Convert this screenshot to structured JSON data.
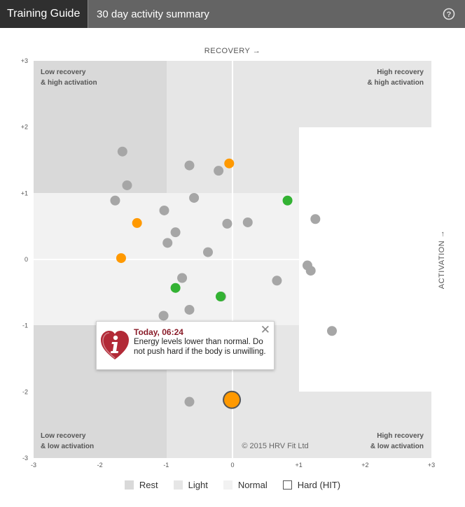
{
  "header": {
    "tab_label": "Training Guide",
    "title": "30 day activity summary",
    "help_icon": "question-circle-icon"
  },
  "chart_data": {
    "type": "scatter",
    "title": "30 day activity summary",
    "xlabel": "RECOVERY →",
    "ylabel": "ACTIVATION →",
    "xlim": [
      -3,
      3
    ],
    "ylim": [
      -3,
      3
    ],
    "x_ticks": [
      "-3",
      "-2",
      "-1",
      "0",
      "+1",
      "+2",
      "+3"
    ],
    "y_ticks": [
      "+3",
      "+2",
      "+1",
      "0",
      "-1",
      "-2",
      "-3"
    ],
    "quadrant_labels": {
      "top_left": [
        "Low recovery",
        "& high activation"
      ],
      "top_right": [
        "High recovery",
        "& high activation"
      ],
      "bottom_left": [
        "Low recovery",
        "& low activation"
      ],
      "bottom_right": [
        "High recovery",
        "& low activation"
      ]
    },
    "copyright": "© 2015 HRV Fit Ltd",
    "zones": {
      "rest": "#d9d9d9",
      "light": "#e6e6e6",
      "normal": "#f2f2f2",
      "hard": "#ffffff"
    },
    "series": [
      {
        "name": "gray",
        "color": "#a6a6a6",
        "points": [
          [
            -1.66,
            1.63
          ],
          [
            -1.59,
            1.12
          ],
          [
            -1.77,
            0.89
          ],
          [
            -1.03,
            0.74
          ],
          [
            -0.65,
            1.42
          ],
          [
            -0.58,
            0.93
          ],
          [
            -0.21,
            1.34
          ],
          [
            -0.86,
            0.41
          ],
          [
            -0.98,
            0.25
          ],
          [
            -0.37,
            0.11
          ],
          [
            -0.08,
            0.54
          ],
          [
            0.23,
            0.56
          ],
          [
            1.25,
            0.61
          ],
          [
            1.13,
            -0.09
          ],
          [
            1.18,
            -0.17
          ],
          [
            0.67,
            -0.32
          ],
          [
            -0.76,
            -0.28
          ],
          [
            -0.17,
            -0.56
          ],
          [
            -0.65,
            -0.76
          ],
          [
            -1.04,
            -0.85
          ],
          [
            1.5,
            -1.08
          ],
          [
            -0.65,
            -2.15
          ]
        ]
      },
      {
        "name": "orange",
        "color": "#ff9900",
        "points": [
          [
            -0.05,
            1.45
          ],
          [
            -1.44,
            0.55
          ],
          [
            -1.68,
            0.02
          ]
        ]
      },
      {
        "name": "green",
        "color": "#33b233",
        "points": [
          [
            0.83,
            0.89
          ],
          [
            -0.86,
            -0.43
          ],
          [
            -0.18,
            -0.56
          ]
        ]
      }
    ],
    "highlight": {
      "x": -0.01,
      "y": -2.12,
      "color": "#ff9900",
      "label": "Today, 06:24"
    },
    "legend": [
      {
        "label": "Rest",
        "color": "#d9d9d9"
      },
      {
        "label": "Light",
        "color": "#e6e6e6"
      },
      {
        "label": "Normal",
        "color": "#f2f2f2"
      },
      {
        "label": "Hard (HIT)",
        "color": "#ffffff"
      }
    ]
  },
  "tooltip": {
    "title": "Today, 06:24",
    "text": "Energy levels lower than normal. Do not push hard if the body is unwilling.",
    "close": "✕",
    "icon": "heart-info-icon"
  }
}
